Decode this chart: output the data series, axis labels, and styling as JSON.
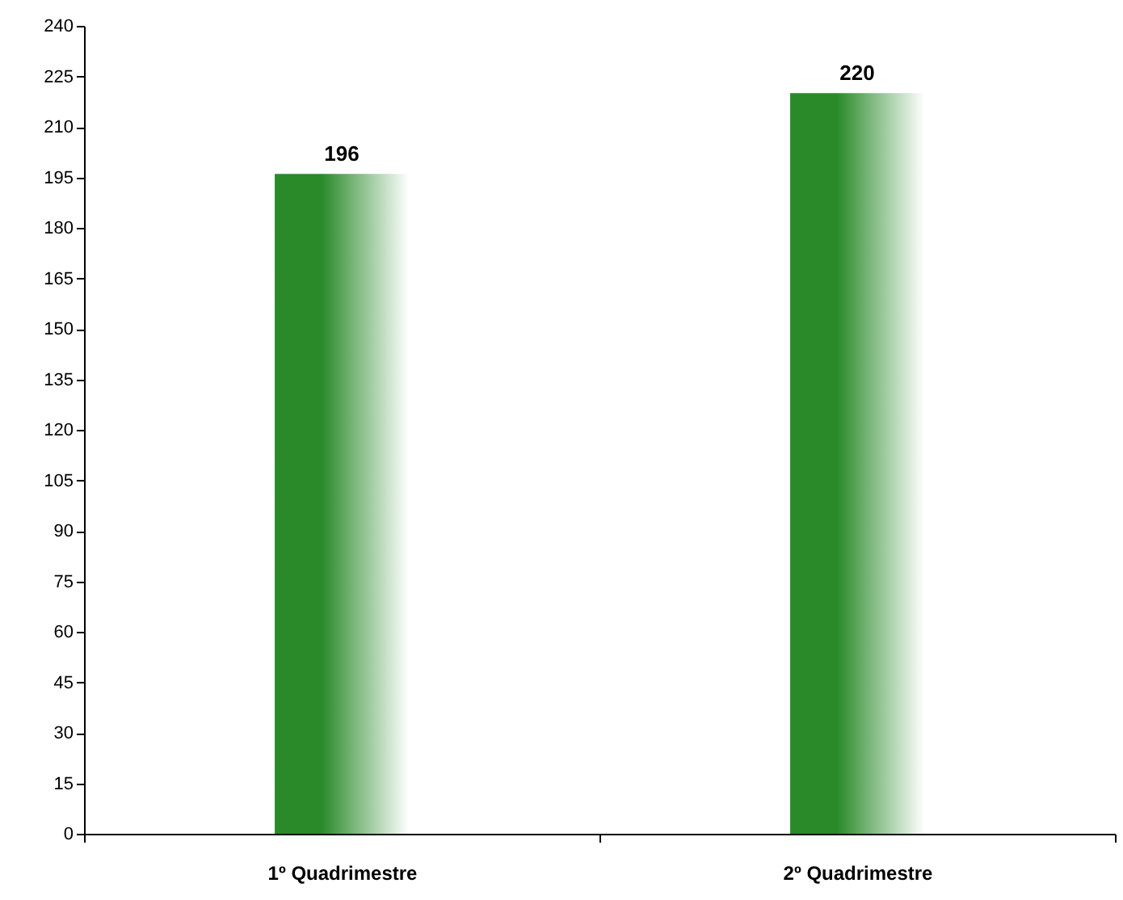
{
  "chart_data": {
    "type": "bar",
    "categories": [
      "1º Quadrimestre",
      "2º Quadrimestre"
    ],
    "values": [
      196,
      220
    ],
    "color": "#2a8a2a",
    "ylim": [
      0,
      240
    ],
    "yticks": [
      0,
      15,
      30,
      45,
      60,
      75,
      90,
      105,
      120,
      135,
      150,
      165,
      180,
      195,
      210,
      225,
      240
    ],
    "data_labels": true,
    "grid": false
  }
}
